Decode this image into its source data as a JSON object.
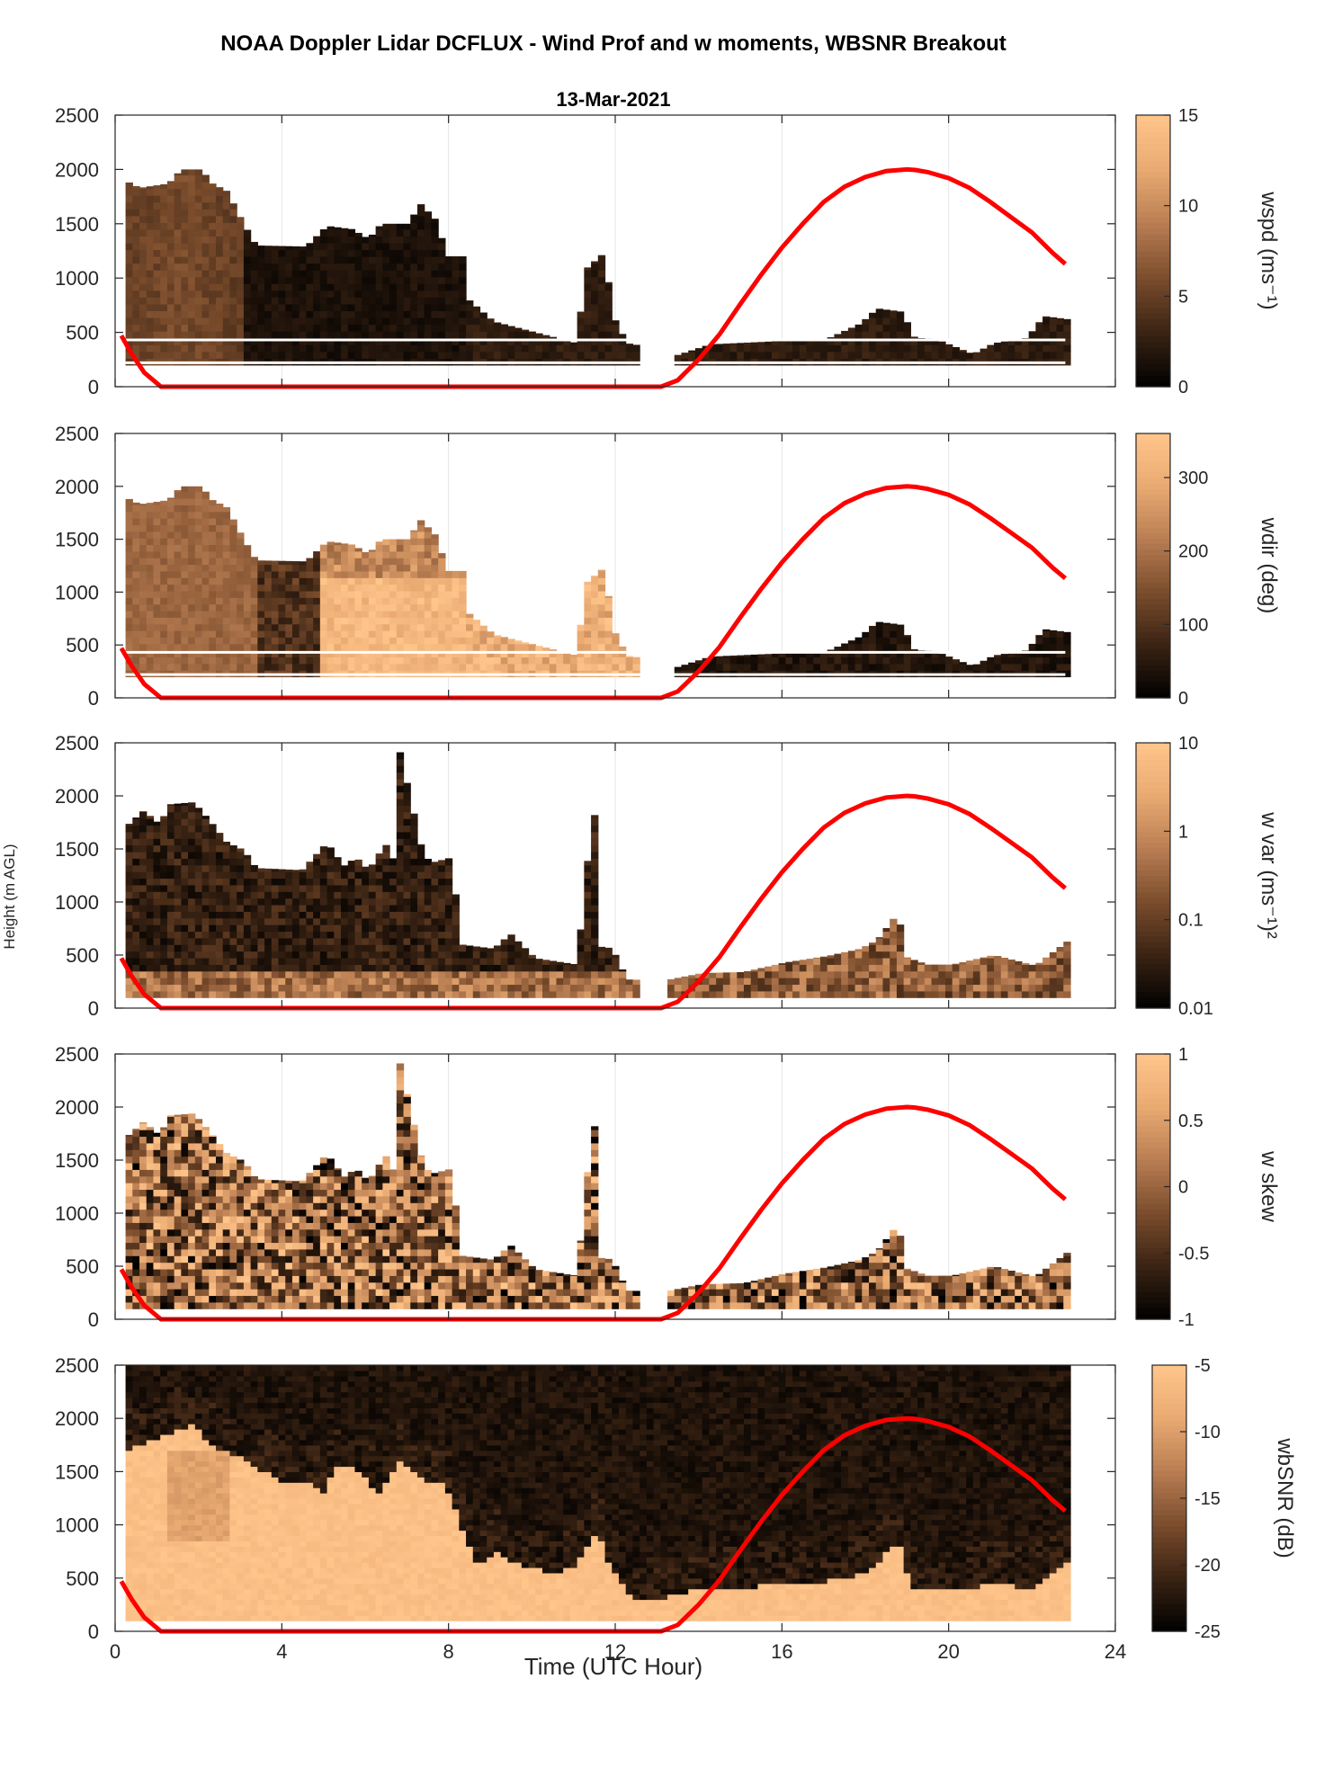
{
  "figure": {
    "title": "NOAA Doppler Lidar DCFLUX - Wind Prof and w moments, WBSNR Breakout",
    "date": "13-Mar-2021",
    "xlabel": "Time (UTC Hour)",
    "ylabel": "Height (m AGL)"
  },
  "colors": {
    "colormap": [
      "#000000",
      "#3a2313",
      "#7a4c2c",
      "#b87d52",
      "#e9aa72",
      "#ffc58b"
    ],
    "overlay_line": "#ff0000",
    "grid": "#e6e6e6",
    "axis": "#262626"
  },
  "chart_data": [
    {
      "type": "heatmap",
      "id": "wspd",
      "colorbar_label": "wspd (ms⁻¹)",
      "xlim": [
        0,
        24
      ],
      "ylim": [
        0,
        2500
      ],
      "xticks": [
        0,
        4,
        8,
        12,
        16,
        20,
        24
      ],
      "yticks": [
        0,
        500,
        1000,
        1500,
        2000,
        2500
      ],
      "clim": [
        0,
        15
      ],
      "colorbar_ticks": [
        0,
        5,
        10,
        15
      ],
      "grid": true
    },
    {
      "type": "heatmap",
      "id": "wdir",
      "colorbar_label": "wdir (deg)",
      "xlim": [
        0,
        24
      ],
      "ylim": [
        0,
        2500
      ],
      "xticks": [
        0,
        4,
        8,
        12,
        16,
        20,
        24
      ],
      "yticks": [
        0,
        500,
        1000,
        1500,
        2000,
        2500
      ],
      "clim": [
        0,
        360
      ],
      "colorbar_ticks": [
        0,
        100,
        200,
        300
      ],
      "grid": true
    },
    {
      "type": "heatmap",
      "id": "wvar",
      "colorbar_label": "w var (ms⁻¹)²",
      "xlim": [
        0,
        24
      ],
      "ylim": [
        0,
        2500
      ],
      "xticks": [
        0,
        4,
        8,
        12,
        16,
        20,
        24
      ],
      "yticks": [
        0,
        500,
        1000,
        1500,
        2000,
        2500
      ],
      "clim": [
        0.01,
        10
      ],
      "log_scale": true,
      "colorbar_ticks": [
        0.01,
        0.1,
        1,
        10
      ],
      "colorbar_ticklabels": [
        "0.01",
        "0.1",
        "1",
        "10"
      ],
      "grid": true
    },
    {
      "type": "heatmap",
      "id": "wskew",
      "colorbar_label": "w skew",
      "xlim": [
        0,
        24
      ],
      "ylim": [
        0,
        2500
      ],
      "xticks": [
        0,
        4,
        8,
        12,
        16,
        20,
        24
      ],
      "yticks": [
        0,
        500,
        1000,
        1500,
        2000,
        2500
      ],
      "clim": [
        -1,
        1
      ],
      "colorbar_ticks": [
        -1,
        -0.5,
        0,
        0.5,
        1
      ],
      "grid": true
    },
    {
      "type": "heatmap",
      "id": "wbsnr",
      "colorbar_label": "wbSNR (dB)",
      "xlim": [
        0,
        24
      ],
      "ylim": [
        0,
        2500
      ],
      "xticks": [
        0,
        4,
        8,
        12,
        16,
        20,
        24
      ],
      "yticks": [
        0,
        500,
        1000,
        1500,
        2000,
        2500
      ],
      "clim": [
        -25,
        -5
      ],
      "colorbar_ticks": [
        -25,
        -20,
        -15,
        -10,
        -5
      ],
      "grid": true
    }
  ],
  "overlay_line": {
    "type": "line",
    "x": [
      0.15,
      0.4,
      0.7,
      1.1,
      2,
      4,
      6,
      8,
      10,
      12,
      13.1,
      13.5,
      14,
      14.5,
      15,
      15.5,
      16,
      16.5,
      17,
      17.5,
      18,
      18.5,
      19,
      19.2,
      19.5,
      20,
      20.5,
      21,
      21.5,
      22,
      22.5,
      22.8
    ],
    "y": [
      470,
      300,
      130,
      0,
      0,
      0,
      0,
      0,
      0,
      0,
      0,
      60,
      250,
      480,
      760,
      1030,
      1280,
      1500,
      1700,
      1840,
      1930,
      1985,
      2000,
      1995,
      1975,
      1920,
      1830,
      1700,
      1560,
      1420,
      1230,
      1130
    ]
  },
  "data_extent": {
    "wspd": {
      "top_h": [
        [
          0.2,
          1890
        ],
        [
          0.5,
          1830
        ],
        [
          1.2,
          1870
        ],
        [
          1.5,
          2000
        ],
        [
          2.0,
          2000
        ],
        [
          2.2,
          1880
        ],
        [
          2.6,
          1800
        ],
        [
          3.0,
          1500
        ],
        [
          3.3,
          1300
        ],
        [
          4.5,
          1290
        ],
        [
          5.0,
          1480
        ],
        [
          5.6,
          1450
        ],
        [
          6.0,
          1360
        ],
        [
          6.3,
          1500
        ],
        [
          7.0,
          1500
        ],
        [
          7.2,
          1700
        ],
        [
          7.6,
          1540
        ],
        [
          7.9,
          1200
        ],
        [
          8.3,
          1200
        ],
        [
          8.4,
          800
        ],
        [
          9.0,
          600
        ],
        [
          11.0,
          400
        ],
        [
          11.2,
          1080
        ],
        [
          11.7,
          1250
        ],
        [
          11.8,
          700
        ],
        [
          12.2,
          400
        ],
        [
          12.5,
          380
        ],
        [
          13.2,
          0
        ],
        [
          13.4,
          290
        ],
        [
          14.2,
          390
        ],
        [
          17.0,
          440
        ],
        [
          17.8,
          580
        ],
        [
          18.2,
          720
        ],
        [
          18.8,
          690
        ],
        [
          19.1,
          450
        ],
        [
          19.6,
          440
        ],
        [
          20.5,
          300
        ],
        [
          21.0,
          400
        ],
        [
          21.8,
          450
        ],
        [
          22.2,
          650
        ],
        [
          22.8,
          620
        ]
      ],
      "bottom_h": 200,
      "x_end": 22.8
    },
    "wdir": {
      "top_h": [
        [
          0.2,
          1890
        ],
        [
          0.5,
          1830
        ],
        [
          1.2,
          1870
        ],
        [
          1.5,
          2000
        ],
        [
          2.0,
          2000
        ],
        [
          2.2,
          1880
        ],
        [
          2.6,
          1800
        ],
        [
          3.0,
          1500
        ],
        [
          3.3,
          1300
        ],
        [
          4.5,
          1290
        ],
        [
          5.0,
          1480
        ],
        [
          5.6,
          1450
        ],
        [
          6.0,
          1360
        ],
        [
          6.3,
          1500
        ],
        [
          7.0,
          1500
        ],
        [
          7.2,
          1700
        ],
        [
          7.6,
          1540
        ],
        [
          7.9,
          1200
        ],
        [
          8.3,
          1200
        ],
        [
          8.4,
          800
        ],
        [
          9.0,
          600
        ],
        [
          11.0,
          400
        ],
        [
          11.2,
          1080
        ],
        [
          11.7,
          1250
        ],
        [
          11.8,
          700
        ],
        [
          12.2,
          400
        ],
        [
          12.5,
          380
        ],
        [
          13.2,
          0
        ],
        [
          13.4,
          290
        ],
        [
          14.2,
          390
        ],
        [
          17.0,
          440
        ],
        [
          17.8,
          580
        ],
        [
          18.2,
          720
        ],
        [
          18.8,
          690
        ],
        [
          19.1,
          450
        ],
        [
          19.6,
          440
        ],
        [
          20.5,
          300
        ],
        [
          21.0,
          400
        ],
        [
          21.8,
          450
        ],
        [
          22.2,
          650
        ],
        [
          22.8,
          620
        ]
      ],
      "bottom_h": 200,
      "x_end": 22.8
    },
    "wvar": {
      "top_h": [
        [
          0.2,
          1720
        ],
        [
          0.6,
          1860
        ],
        [
          1.0,
          1730
        ],
        [
          1.2,
          1920
        ],
        [
          1.8,
          1940
        ],
        [
          2.2,
          1760
        ],
        [
          2.6,
          1560
        ],
        [
          3.0,
          1490
        ],
        [
          3.3,
          1320
        ],
        [
          4.4,
          1300
        ],
        [
          5.0,
          1560
        ],
        [
          5.4,
          1340
        ],
        [
          5.7,
          1420
        ],
        [
          6.0,
          1300
        ],
        [
          6.4,
          1550
        ],
        [
          6.6,
          1400
        ],
        [
          6.7,
          2500
        ],
        [
          7.3,
          1460
        ],
        [
          7.5,
          1370
        ],
        [
          8.0,
          1420
        ],
        [
          8.2,
          600
        ],
        [
          9.0,
          560
        ],
        [
          9.4,
          700
        ],
        [
          10.0,
          470
        ],
        [
          11.0,
          410
        ],
        [
          11.4,
          1960
        ],
        [
          11.6,
          470
        ],
        [
          11.8,
          600
        ],
        [
          12.2,
          270
        ],
        [
          13.1,
          260
        ],
        [
          14.0,
          330
        ],
        [
          15.0,
          340
        ],
        [
          16.0,
          430
        ],
        [
          17.0,
          490
        ],
        [
          17.8,
          560
        ],
        [
          18.2,
          640
        ],
        [
          18.7,
          900
        ],
        [
          18.9,
          480
        ],
        [
          19.4,
          410
        ],
        [
          20.0,
          410
        ],
        [
          21.0,
          500
        ],
        [
          22.0,
          400
        ],
        [
          22.8,
          640
        ]
      ],
      "bottom_h": 100,
      "x_end": 22.8
    },
    "wskew": {
      "top_h": [
        [
          0.2,
          1720
        ],
        [
          0.6,
          1860
        ],
        [
          1.0,
          1730
        ],
        [
          1.2,
          1920
        ],
        [
          1.8,
          1940
        ],
        [
          2.2,
          1760
        ],
        [
          2.6,
          1560
        ],
        [
          3.0,
          1490
        ],
        [
          3.3,
          1320
        ],
        [
          4.4,
          1300
        ],
        [
          5.0,
          1560
        ],
        [
          5.4,
          1340
        ],
        [
          5.7,
          1420
        ],
        [
          6.0,
          1300
        ],
        [
          6.4,
          1550
        ],
        [
          6.6,
          1400
        ],
        [
          6.7,
          2500
        ],
        [
          7.3,
          1460
        ],
        [
          7.5,
          1370
        ],
        [
          8.0,
          1420
        ],
        [
          8.2,
          600
        ],
        [
          9.0,
          560
        ],
        [
          9.4,
          700
        ],
        [
          10.0,
          470
        ],
        [
          11.0,
          410
        ],
        [
          11.4,
          1960
        ],
        [
          11.6,
          470
        ],
        [
          11.8,
          600
        ],
        [
          12.2,
          270
        ],
        [
          13.1,
          260
        ],
        [
          14.0,
          330
        ],
        [
          15.0,
          340
        ],
        [
          16.0,
          430
        ],
        [
          17.0,
          490
        ],
        [
          17.8,
          560
        ],
        [
          18.2,
          640
        ],
        [
          18.7,
          900
        ],
        [
          18.9,
          480
        ],
        [
          19.4,
          410
        ],
        [
          20.0,
          410
        ],
        [
          21.0,
          500
        ],
        [
          22.0,
          400
        ],
        [
          22.8,
          640
        ]
      ],
      "bottom_h": 100,
      "x_end": 22.8
    },
    "wbsnr": {
      "high_h": [
        [
          0.3,
          1700
        ],
        [
          1.2,
          1820
        ],
        [
          1.8,
          1920
        ],
        [
          2.4,
          1640
        ],
        [
          3.0,
          1600
        ],
        [
          3.3,
          1520
        ],
        [
          4.0,
          1360
        ],
        [
          4.5,
          1380
        ],
        [
          4.9,
          1260
        ],
        [
          5.3,
          1580
        ],
        [
          5.9,
          1420
        ],
        [
          6.2,
          1260
        ],
        [
          6.8,
          1580
        ],
        [
          7.3,
          1400
        ],
        [
          7.8,
          1360
        ],
        [
          8.2,
          1000
        ],
        [
          8.6,
          600
        ],
        [
          9.0,
          720
        ],
        [
          9.5,
          630
        ],
        [
          10.0,
          560
        ],
        [
          10.5,
          520
        ],
        [
          11.0,
          600
        ],
        [
          11.5,
          900
        ],
        [
          11.8,
          560
        ],
        [
          12.4,
          280
        ],
        [
          13.0,
          280
        ],
        [
          14.0,
          380
        ],
        [
          15.0,
          380
        ],
        [
          16.0,
          430
        ],
        [
          17.0,
          450
        ],
        [
          18.0,
          520
        ],
        [
          18.7,
          850
        ],
        [
          19.0,
          400
        ],
        [
          20.0,
          370
        ],
        [
          21.0,
          420
        ],
        [
          22.0,
          380
        ],
        [
          22.8,
          620
        ]
      ],
      "bottom_h": 100,
      "x_end": 22.8
    }
  }
}
